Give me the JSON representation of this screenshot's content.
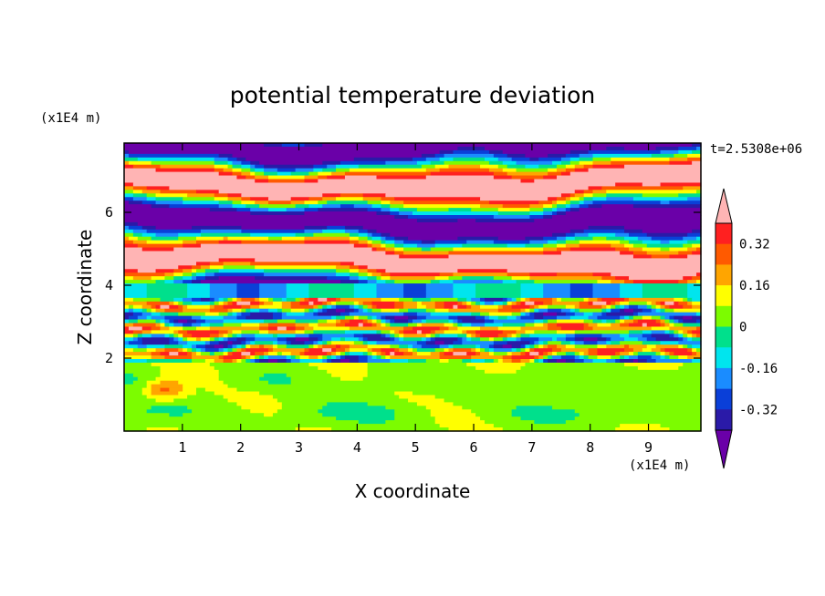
{
  "chart_data": {
    "type": "heatmap",
    "title": "potential temperature deviation",
    "xlabel": "X coordinate",
    "ylabel": "Z coordinate",
    "x_unit": "(x1E4 m)",
    "y_unit": "(x1E4 m)",
    "time_label": "t=2.5308e+06",
    "xlim": [
      0,
      9.9
    ],
    "ylim": [
      0,
      7.9
    ],
    "x_ticks": [
      "1",
      "2",
      "3",
      "4",
      "5",
      "6",
      "7",
      "8",
      "9"
    ],
    "y_ticks": [
      "2",
      "4",
      "6"
    ],
    "x_tick_values": [
      1,
      2,
      3,
      4,
      5,
      6,
      7,
      8,
      9
    ],
    "y_tick_values": [
      2,
      4,
      6
    ],
    "colorbar": {
      "levels": [
        -0.4,
        -0.32,
        -0.24,
        -0.16,
        -0.08,
        0,
        0.08,
        0.16,
        0.24,
        0.32,
        0.4
      ],
      "labels": [
        "0.32",
        "0.16",
        "0",
        "-0.16",
        "-0.32"
      ],
      "label_values": [
        0.32,
        0.16,
        0,
        -0.16,
        -0.32
      ],
      "colors_low_to_high": [
        "#6a00a8",
        "#2a1aa8",
        "#0a3fd8",
        "#1a8cff",
        "#00e5ee",
        "#00e08c",
        "#7cfc00",
        "#ffff00",
        "#ffa500",
        "#ff5a00",
        "#ff2020",
        "#ffb4b4"
      ],
      "extend": "both"
    }
  }
}
